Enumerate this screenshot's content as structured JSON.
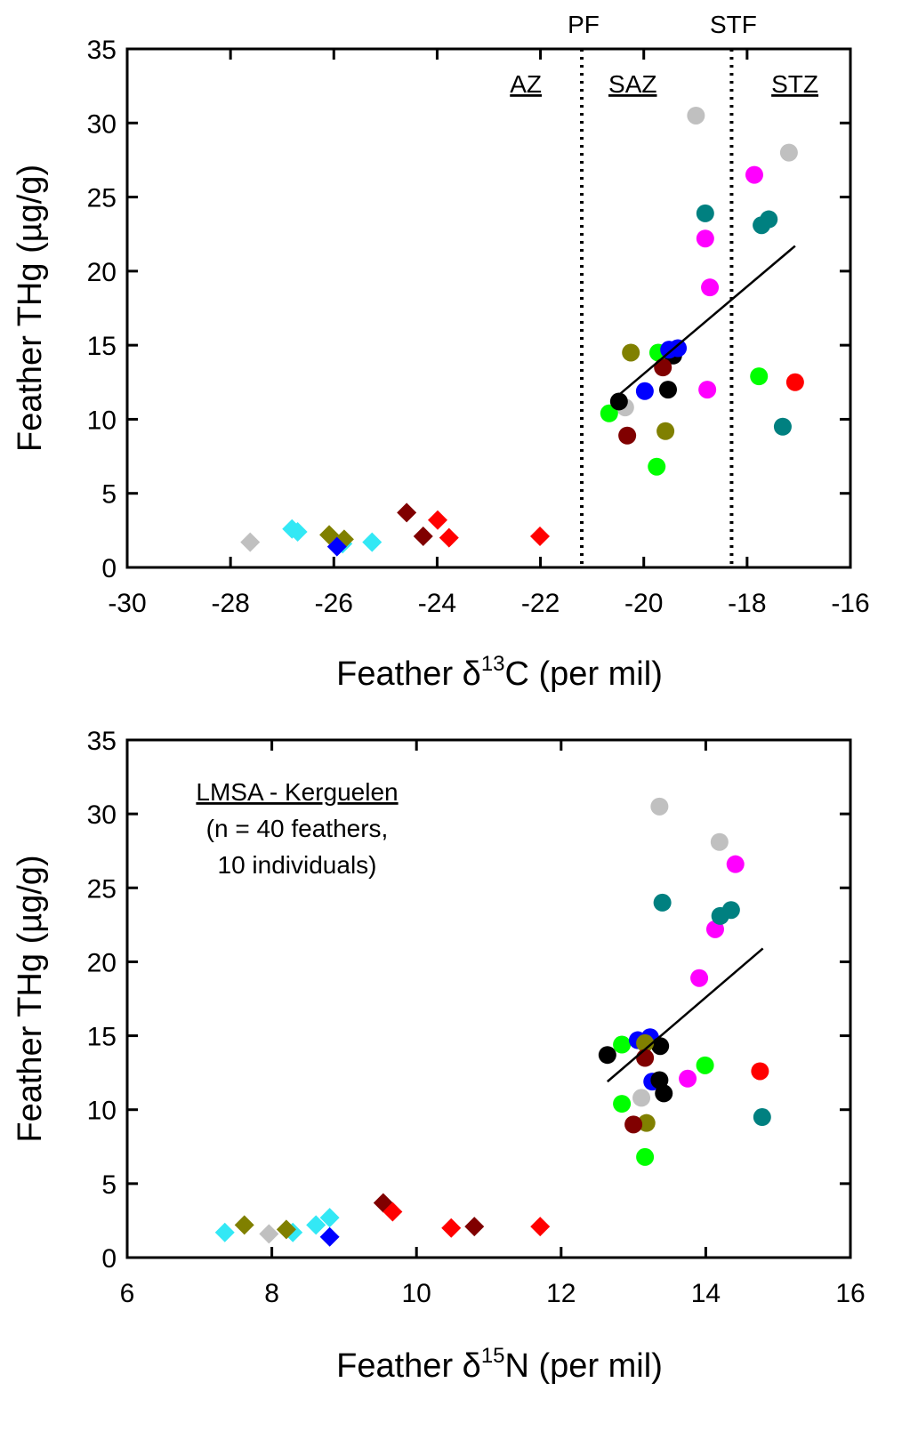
{
  "chart_data": [
    {
      "type": "scatter",
      "xlabel": [
        "Feather δ",
        "13",
        "C (per mil)"
      ],
      "ylabel": "Feather THg (µg/g)",
      "xlim": [
        -30,
        -16
      ],
      "xticks": [
        -30,
        -28,
        -26,
        -24,
        -22,
        -20,
        -18,
        -16
      ],
      "ylim": [
        0,
        35
      ],
      "yticks": [
        0,
        5,
        10,
        15,
        20,
        25,
        30,
        35
      ],
      "fronts": [
        {
          "x": -21.2,
          "label": "PF"
        },
        {
          "x": -18.3,
          "label": "STF"
        }
      ],
      "zones": [
        "AZ",
        "SAZ",
        "STZ"
      ],
      "trend": {
        "x": [
          -20.6,
          -17.07
        ],
        "y": [
          11.3,
          21.7
        ]
      },
      "series": [
        {
          "color": "#c0c0c0",
          "marker": "diamond",
          "x": [
            -27.62
          ],
          "y": [
            1.7
          ]
        },
        {
          "color": "#33e8f5",
          "marker": "diamond",
          "x": [
            -26.81,
            -26.7,
            -25.83,
            -25.26
          ],
          "y": [
            2.6,
            2.4,
            1.6,
            1.7
          ]
        },
        {
          "color": "#808000",
          "marker": "diamond",
          "x": [
            -26.09,
            -25.8
          ],
          "y": [
            2.2,
            1.9
          ]
        },
        {
          "color": "#0000ff",
          "marker": "diamond",
          "x": [
            -25.94
          ],
          "y": [
            1.4
          ]
        },
        {
          "color": "#800000",
          "marker": "diamond",
          "x": [
            -24.59,
            -24.27
          ],
          "y": [
            3.7,
            2.1
          ]
        },
        {
          "color": "#ff0000",
          "marker": "diamond",
          "x": [
            -23.99,
            -23.77,
            -22.01
          ],
          "y": [
            3.2,
            2.0,
            2.1
          ]
        },
        {
          "color": "#c0c0c0",
          "marker": "circle",
          "x": [
            -18.99,
            -17.19,
            -20.36
          ],
          "y": [
            30.5,
            28.0,
            10.8
          ]
        },
        {
          "color": "#ff00ff",
          "marker": "circle",
          "x": [
            -17.86,
            -18.81,
            -18.72,
            -18.77
          ],
          "y": [
            26.5,
            22.2,
            18.9,
            12.0
          ]
        },
        {
          "color": "#008080",
          "marker": "circle",
          "x": [
            -18.81,
            -17.72,
            -17.58,
            -17.31
          ],
          "y": [
            23.9,
            23.1,
            23.5,
            9.5
          ]
        },
        {
          "color": "#808000",
          "marker": "circle",
          "x": [
            -20.25,
            -19.58
          ],
          "y": [
            14.5,
            9.2
          ]
        },
        {
          "color": "#00ff00",
          "marker": "circle",
          "x": [
            -19.72,
            -17.77,
            -20.67,
            -19.75
          ],
          "y": [
            14.5,
            12.9,
            10.4,
            6.8
          ]
        },
        {
          "color": "#000000",
          "marker": "circle",
          "x": [
            -19.43,
            -19.53,
            -20.48
          ],
          "y": [
            14.3,
            12.0,
            11.2
          ]
        },
        {
          "color": "#0000ff",
          "marker": "circle",
          "x": [
            -19.51,
            -19.34,
            -19.98
          ],
          "y": [
            14.7,
            14.8,
            11.9
          ]
        },
        {
          "color": "#800000",
          "marker": "circle",
          "x": [
            -19.63,
            -20.32
          ],
          "y": [
            13.5,
            8.9
          ]
        },
        {
          "color": "#ff0000",
          "marker": "circle",
          "x": [
            -17.07
          ],
          "y": [
            12.5
          ]
        }
      ]
    },
    {
      "type": "scatter",
      "xlabel": [
        "Feather δ",
        "15",
        "N (per mil)"
      ],
      "ylabel": "Feather THg (µg/g)",
      "xlim": [
        6,
        16
      ],
      "xticks": [
        6,
        8,
        10,
        12,
        14,
        16
      ],
      "ylim": [
        0,
        35
      ],
      "yticks": [
        0,
        5,
        10,
        15,
        20,
        25,
        30,
        35
      ],
      "annotation": [
        "LMSA - Kerguelen",
        "(n = 40 feathers,",
        "10 individuals)"
      ],
      "trend": {
        "x": [
          12.64,
          14.79
        ],
        "y": [
          11.9,
          20.9
        ]
      },
      "series": [
        {
          "color": "#33e8f5",
          "marker": "diamond",
          "x": [
            7.35,
            8.29,
            8.61,
            8.8
          ],
          "y": [
            1.7,
            1.7,
            2.2,
            2.7
          ]
        },
        {
          "color": "#808000",
          "marker": "diamond",
          "x": [
            7.62,
            8.2
          ],
          "y": [
            2.2,
            1.9
          ]
        },
        {
          "color": "#c0c0c0",
          "marker": "diamond",
          "x": [
            7.96
          ],
          "y": [
            1.6
          ]
        },
        {
          "color": "#0000ff",
          "marker": "diamond",
          "x": [
            8.8
          ],
          "y": [
            1.4
          ]
        },
        {
          "color": "#800000",
          "marker": "diamond",
          "x": [
            9.54,
            10.8
          ],
          "y": [
            3.7,
            2.1
          ]
        },
        {
          "color": "#ff0000",
          "marker": "diamond",
          "x": [
            9.67,
            10.48,
            11.71
          ],
          "y": [
            3.1,
            2.0,
            2.1
          ]
        },
        {
          "color": "#c0c0c0",
          "marker": "circle",
          "x": [
            13.36,
            14.19,
            13.11
          ],
          "y": [
            30.5,
            28.1,
            10.8
          ]
        },
        {
          "color": "#ff00ff",
          "marker": "circle",
          "x": [
            14.41,
            14.13,
            13.91,
            13.75
          ],
          "y": [
            26.6,
            22.2,
            18.9,
            12.1
          ]
        },
        {
          "color": "#008080",
          "marker": "circle",
          "x": [
            13.4,
            14.2,
            14.35,
            14.78
          ],
          "y": [
            24.0,
            23.1,
            23.5,
            9.5
          ]
        },
        {
          "color": "#00ff00",
          "marker": "circle",
          "x": [
            12.84,
            13.99,
            12.84,
            13.16
          ],
          "y": [
            14.4,
            13.0,
            10.4,
            6.8
          ]
        },
        {
          "color": "#0000ff",
          "marker": "circle",
          "x": [
            13.06,
            13.23,
            13.26
          ],
          "y": [
            14.7,
            14.9,
            11.9
          ]
        },
        {
          "color": "#000000",
          "marker": "circle",
          "x": [
            13.37,
            12.64,
            13.36,
            13.42
          ],
          "y": [
            14.3,
            13.7,
            12.0,
            11.1
          ]
        },
        {
          "color": "#808000",
          "marker": "circle",
          "x": [
            13.16,
            13.18
          ],
          "y": [
            14.5,
            9.1
          ]
        },
        {
          "color": "#800000",
          "marker": "circle",
          "x": [
            13.16,
            13.0
          ],
          "y": [
            13.5,
            9.0
          ]
        },
        {
          "color": "#ff0000",
          "marker": "circle",
          "x": [
            14.75
          ],
          "y": [
            12.6
          ]
        }
      ]
    }
  ]
}
